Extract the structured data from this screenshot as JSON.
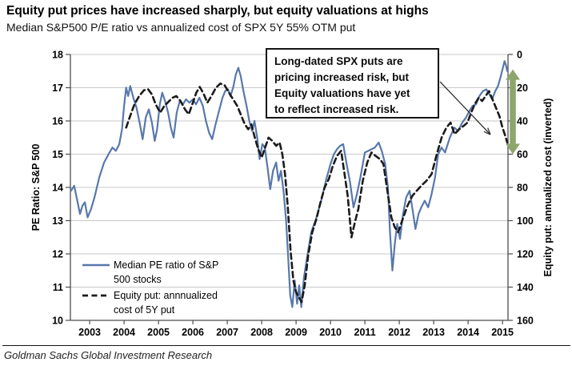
{
  "header": {
    "title": "Equity put prices have increased sharply, but equity valuations at highs",
    "subtitle": "Median S&P500 P/E ratio vs annualized cost of SPX 5Y 55% OTM put"
  },
  "footer": {
    "source": "Goldman Sachs Global Investment Research"
  },
  "annotation": {
    "text": "Long-dated SPX puts are\npricing increased risk, but\nEquity valuations have yet\nto reflect increased risk."
  },
  "legend": {
    "items": [
      {
        "label": "Median PE ratio of S&P\n500 stocks",
        "line": "solid",
        "color": "#5878AC"
      },
      {
        "label": "Equity put: annnualized\ncost of 5Y put",
        "line": "dashed",
        "color": "#1b1b1b"
      }
    ]
  },
  "chart_data": {
    "type": "line",
    "title": "Median S&P500 P/E ratio vs annualized cost of SPX 5Y 55% OTM put",
    "grid": "horizontal-only",
    "legend_position": "bottom-left-inside",
    "x_axis": {
      "range": [
        2002.44,
        2015.16
      ],
      "ticks": [
        2003,
        2004,
        2005,
        2006,
        2007,
        2008,
        2009,
        2010,
        2011,
        2012,
        2013,
        2014,
        2015
      ]
    },
    "left_axis": {
      "label": "PE Ratio: S&P 500",
      "range": [
        10,
        18
      ],
      "ticks": [
        10,
        11,
        12,
        13,
        14,
        15,
        16,
        17,
        18
      ]
    },
    "right_axis": {
      "label": "Equity put: annualized cost (inverted)",
      "range": [
        0,
        160
      ],
      "ticks": [
        0,
        20,
        40,
        60,
        80,
        100,
        120,
        140,
        160
      ],
      "inverted": true
    },
    "series": [
      {
        "name": "Median PE ratio of S&P 500 stocks",
        "axis": "left",
        "color": "#5878AC",
        "line": "solid",
        "points": [
          [
            2002.46,
            13.9
          ],
          [
            2002.55,
            14.05
          ],
          [
            2002.64,
            13.6
          ],
          [
            2002.72,
            13.2
          ],
          [
            2002.79,
            13.45
          ],
          [
            2002.86,
            13.55
          ],
          [
            2002.94,
            13.1
          ],
          [
            2003.04,
            13.35
          ],
          [
            2003.14,
            13.7
          ],
          [
            2003.28,
            14.3
          ],
          [
            2003.42,
            14.75
          ],
          [
            2003.55,
            15.0
          ],
          [
            2003.66,
            15.2
          ],
          [
            2003.76,
            15.1
          ],
          [
            2003.86,
            15.3
          ],
          [
            2003.94,
            15.75
          ],
          [
            2004.0,
            16.45
          ],
          [
            2004.06,
            17.0
          ],
          [
            2004.12,
            16.75
          ],
          [
            2004.18,
            17.05
          ],
          [
            2004.27,
            16.7
          ],
          [
            2004.36,
            16.4
          ],
          [
            2004.46,
            15.9
          ],
          [
            2004.54,
            15.45
          ],
          [
            2004.63,
            16.1
          ],
          [
            2004.72,
            16.35
          ],
          [
            2004.81,
            15.95
          ],
          [
            2004.89,
            15.4
          ],
          [
            2004.96,
            15.75
          ],
          [
            2005.04,
            16.5
          ],
          [
            2005.11,
            16.85
          ],
          [
            2005.19,
            16.6
          ],
          [
            2005.28,
            16.25
          ],
          [
            2005.36,
            15.8
          ],
          [
            2005.44,
            15.5
          ],
          [
            2005.53,
            16.25
          ],
          [
            2005.62,
            16.6
          ],
          [
            2005.71,
            16.5
          ],
          [
            2005.8,
            16.65
          ],
          [
            2005.9,
            16.55
          ],
          [
            2006.0,
            16.65
          ],
          [
            2006.09,
            16.5
          ],
          [
            2006.19,
            16.7
          ],
          [
            2006.29,
            16.45
          ],
          [
            2006.38,
            16.0
          ],
          [
            2006.47,
            15.65
          ],
          [
            2006.56,
            15.45
          ],
          [
            2006.66,
            15.9
          ],
          [
            2006.76,
            16.3
          ],
          [
            2006.86,
            16.7
          ],
          [
            2006.94,
            16.9
          ],
          [
            2007.02,
            16.95
          ],
          [
            2007.09,
            16.75
          ],
          [
            2007.17,
            17.0
          ],
          [
            2007.25,
            17.4
          ],
          [
            2007.32,
            17.6
          ],
          [
            2007.39,
            17.35
          ],
          [
            2007.47,
            16.9
          ],
          [
            2007.56,
            16.45
          ],
          [
            2007.64,
            16.0
          ],
          [
            2007.72,
            15.7
          ],
          [
            2007.79,
            16.0
          ],
          [
            2007.87,
            15.5
          ],
          [
            2007.94,
            14.85
          ],
          [
            2008.02,
            15.3
          ],
          [
            2008.09,
            15.2
          ],
          [
            2008.17,
            14.6
          ],
          [
            2008.25,
            13.95
          ],
          [
            2008.33,
            14.5
          ],
          [
            2008.42,
            14.75
          ],
          [
            2008.49,
            14.2
          ],
          [
            2008.56,
            14.5
          ],
          [
            2008.64,
            13.85
          ],
          [
            2008.71,
            13.0
          ],
          [
            2008.77,
            11.9
          ],
          [
            2008.83,
            10.75
          ],
          [
            2008.89,
            10.4
          ],
          [
            2008.96,
            11.2
          ],
          [
            2009.03,
            10.5
          ],
          [
            2009.09,
            11.05
          ],
          [
            2009.15,
            10.4
          ],
          [
            2009.23,
            11.3
          ],
          [
            2009.32,
            11.9
          ],
          [
            2009.44,
            12.65
          ],
          [
            2009.58,
            13.05
          ],
          [
            2009.73,
            13.6
          ],
          [
            2009.88,
            14.25
          ],
          [
            2010.0,
            14.7
          ],
          [
            2010.1,
            15.0
          ],
          [
            2010.19,
            15.15
          ],
          [
            2010.28,
            15.25
          ],
          [
            2010.37,
            15.3
          ],
          [
            2010.47,
            14.7
          ],
          [
            2010.57,
            14.15
          ],
          [
            2010.67,
            13.4
          ],
          [
            2010.77,
            13.8
          ],
          [
            2010.87,
            14.3
          ],
          [
            2011.0,
            15.05
          ],
          [
            2011.1,
            15.1
          ],
          [
            2011.19,
            15.15
          ],
          [
            2011.29,
            15.2
          ],
          [
            2011.4,
            15.35
          ],
          [
            2011.49,
            15.1
          ],
          [
            2011.59,
            14.7
          ],
          [
            2011.67,
            14.0
          ],
          [
            2011.73,
            12.65
          ],
          [
            2011.8,
            11.5
          ],
          [
            2011.87,
            12.3
          ],
          [
            2011.94,
            12.9
          ],
          [
            2012.02,
            12.45
          ],
          [
            2012.11,
            13.2
          ],
          [
            2012.2,
            13.7
          ],
          [
            2012.3,
            13.9
          ],
          [
            2012.39,
            13.3
          ],
          [
            2012.47,
            12.75
          ],
          [
            2012.56,
            13.2
          ],
          [
            2012.64,
            13.4
          ],
          [
            2012.74,
            13.6
          ],
          [
            2012.84,
            13.4
          ],
          [
            2012.94,
            13.8
          ],
          [
            2013.04,
            14.3
          ],
          [
            2013.13,
            15.0
          ],
          [
            2013.23,
            15.2
          ],
          [
            2013.33,
            15.05
          ],
          [
            2013.47,
            15.5
          ],
          [
            2013.6,
            15.8
          ],
          [
            2013.71,
            15.7
          ],
          [
            2013.83,
            15.95
          ],
          [
            2013.94,
            16.1
          ],
          [
            2014.04,
            16.3
          ],
          [
            2014.13,
            16.45
          ],
          [
            2014.23,
            16.5
          ],
          [
            2014.33,
            16.75
          ],
          [
            2014.43,
            16.9
          ],
          [
            2014.53,
            16.95
          ],
          [
            2014.62,
            16.8
          ],
          [
            2014.7,
            16.65
          ],
          [
            2014.79,
            16.9
          ],
          [
            2014.87,
            17.05
          ],
          [
            2014.94,
            17.3
          ],
          [
            2015.0,
            17.55
          ],
          [
            2015.06,
            17.8
          ],
          [
            2015.1,
            17.68
          ],
          [
            2015.14,
            17.5
          ]
        ]
      },
      {
        "name": "Equity put: annnualized cost of 5Y put",
        "axis": "right",
        "color": "#1b1b1b",
        "line": "dashed",
        "points": [
          [
            2004.06,
            44
          ],
          [
            2004.16,
            38
          ],
          [
            2004.3,
            30
          ],
          [
            2004.44,
            25
          ],
          [
            2004.58,
            21.5
          ],
          [
            2004.7,
            21
          ],
          [
            2004.81,
            24
          ],
          [
            2004.92,
            30
          ],
          [
            2005.05,
            35
          ],
          [
            2005.17,
            31
          ],
          [
            2005.29,
            28.5
          ],
          [
            2005.41,
            26
          ],
          [
            2005.52,
            25
          ],
          [
            2005.64,
            28
          ],
          [
            2005.77,
            33
          ],
          [
            2005.88,
            36
          ],
          [
            2006.0,
            29
          ],
          [
            2006.1,
            23
          ],
          [
            2006.2,
            19.5
          ],
          [
            2006.31,
            23.5
          ],
          [
            2006.42,
            29
          ],
          [
            2006.54,
            25
          ],
          [
            2006.67,
            20
          ],
          [
            2006.8,
            17.5
          ],
          [
            2006.92,
            18.5
          ],
          [
            2007.05,
            23
          ],
          [
            2007.17,
            27
          ],
          [
            2007.29,
            31
          ],
          [
            2007.41,
            37
          ],
          [
            2007.51,
            42
          ],
          [
            2007.61,
            45
          ],
          [
            2007.7,
            42
          ],
          [
            2007.8,
            50
          ],
          [
            2007.9,
            57
          ],
          [
            2008.0,
            62
          ],
          [
            2008.1,
            56
          ],
          [
            2008.2,
            50
          ],
          [
            2008.31,
            52
          ],
          [
            2008.42,
            55
          ],
          [
            2008.52,
            53
          ],
          [
            2008.6,
            60
          ],
          [
            2008.68,
            72
          ],
          [
            2008.76,
            92
          ],
          [
            2008.84,
            118
          ],
          [
            2008.92,
            136
          ],
          [
            2009.0,
            143
          ],
          [
            2009.08,
            146
          ],
          [
            2009.16,
            149
          ],
          [
            2009.25,
            139
          ],
          [
            2009.35,
            121
          ],
          [
            2009.47,
            107
          ],
          [
            2009.59,
            99
          ],
          [
            2009.71,
            89
          ],
          [
            2009.83,
            80
          ],
          [
            2009.95,
            75
          ],
          [
            2010.07,
            67
          ],
          [
            2010.19,
            61
          ],
          [
            2010.31,
            58
          ],
          [
            2010.41,
            72
          ],
          [
            2010.5,
            85
          ],
          [
            2010.61,
            110
          ],
          [
            2010.71,
            101
          ],
          [
            2010.81,
            93
          ],
          [
            2010.94,
            76
          ],
          [
            2011.07,
            65
          ],
          [
            2011.19,
            59
          ],
          [
            2011.31,
            61
          ],
          [
            2011.44,
            63
          ],
          [
            2011.54,
            66
          ],
          [
            2011.64,
            80
          ],
          [
            2011.77,
            98
          ],
          [
            2011.87,
            104
          ],
          [
            2011.97,
            107
          ],
          [
            2012.1,
            99
          ],
          [
            2012.24,
            91
          ],
          [
            2012.38,
            85
          ],
          [
            2012.51,
            82
          ],
          [
            2012.64,
            79
          ],
          [
            2012.79,
            76
          ],
          [
            2012.94,
            72
          ],
          [
            2013.09,
            60
          ],
          [
            2013.23,
            50
          ],
          [
            2013.37,
            44
          ],
          [
            2013.49,
            41
          ],
          [
            2013.61,
            48
          ],
          [
            2013.74,
            45
          ],
          [
            2013.87,
            43
          ],
          [
            2013.98,
            41
          ],
          [
            2014.09,
            35
          ],
          [
            2014.19,
            30
          ],
          [
            2014.31,
            26
          ],
          [
            2014.41,
            28
          ],
          [
            2014.51,
            25
          ],
          [
            2014.61,
            22
          ],
          [
            2014.71,
            27
          ],
          [
            2014.81,
            32
          ],
          [
            2014.91,
            37
          ],
          [
            2015.0,
            44
          ],
          [
            2015.08,
            49
          ],
          [
            2015.14,
            53
          ]
        ]
      }
    ],
    "highlight_arrow": {
      "axis": "right",
      "from": 9,
      "to": 60,
      "color": "#8CA66B"
    }
  }
}
